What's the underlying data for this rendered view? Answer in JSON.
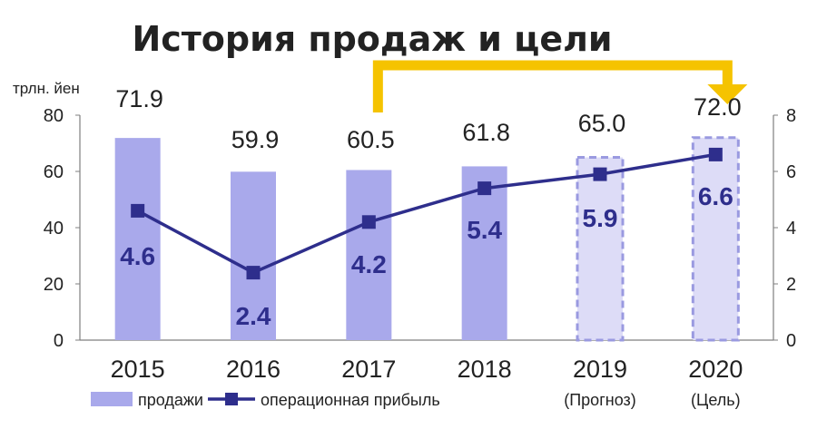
{
  "chart_data": {
    "type": "bar+line",
    "title": "История продаж и цели",
    "categories": [
      "2015",
      "2016",
      "2017",
      "2018",
      "2019",
      "2020"
    ],
    "category_notes": [
      "",
      "",
      "",
      "",
      "(Прогноз)",
      "(Цель)"
    ],
    "y_left": {
      "unit": "трлн. йен",
      "ticks": [
        "0",
        "20",
        "40",
        "60",
        "80"
      ],
      "range": [
        0,
        80
      ]
    },
    "y_right": {
      "ticks": [
        "0",
        "2",
        "4",
        "6",
        "8"
      ],
      "range": [
        0,
        8
      ]
    },
    "series": [
      {
        "name": "продажи",
        "type": "bar",
        "axis": "left",
        "values": [
          71.9,
          59.9,
          60.5,
          61.8,
          65.0,
          72.0
        ],
        "labels": [
          "71.9",
          "59.9",
          "60.5",
          "61.8",
          "65.0",
          "72.0"
        ],
        "dashed": [
          false,
          false,
          false,
          false,
          true,
          true
        ]
      },
      {
        "name": "операционная прибыль",
        "type": "line",
        "axis": "right",
        "values": [
          4.6,
          2.4,
          4.2,
          5.4,
          5.9,
          6.6
        ],
        "labels": [
          "4.6",
          "2.4",
          "4.2",
          "5.4",
          "5.9",
          "6.6"
        ]
      }
    ],
    "colors": {
      "bar": "#a9a9eb",
      "bar_forecast": "#dddcf7",
      "bar_forecast_border": "#9a9ae0",
      "line": "#2e2e8c",
      "arrow": "#f5c300",
      "axis": "#7f7f7f",
      "label_profit": "#2e2e8c",
      "label_sales": "#222222"
    },
    "arrow": {
      "from": "2017",
      "to": "2020"
    },
    "grid": false,
    "legend_position": "bottom-left"
  }
}
